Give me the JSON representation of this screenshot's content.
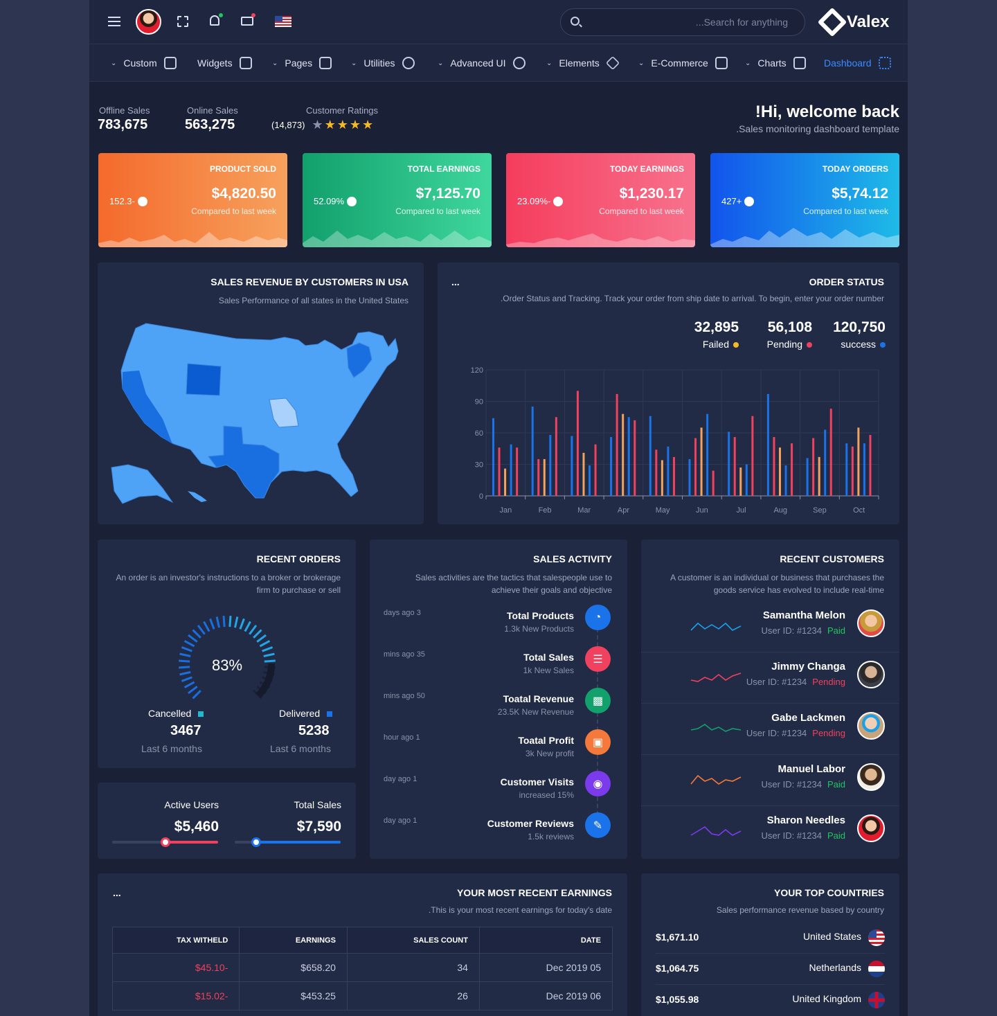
{
  "header": {
    "brand": "Valex",
    "search_placeholder": "...Search for anything",
    "icons": [
      "menu-icon",
      "fullscreen-icon",
      "bell-icon",
      "mail-icon",
      "us-flag-icon"
    ]
  },
  "nav": [
    {
      "label": "Custom",
      "icon": "lock-icon"
    },
    {
      "label": "Widgets",
      "icon": "basket-icon"
    },
    {
      "label": "Pages",
      "icon": "book-icon"
    },
    {
      "label": "Utilities",
      "icon": "aperture-icon"
    },
    {
      "label": "Advanced UI",
      "icon": "palette-icon"
    },
    {
      "label": "Elements",
      "icon": "layers-icon"
    },
    {
      "label": "E-Commerce",
      "icon": "basket-icon"
    },
    {
      "label": "Charts",
      "icon": "bar-chart-icon"
    },
    {
      "label": "Dashboard",
      "icon": "dashboard-icon",
      "active": true
    }
  ],
  "stats": {
    "offline_label": "Offline Sales",
    "offline_value": "783,675",
    "online_label": "Online Sales",
    "online_value": "563,275",
    "ratings_label": "Customer Ratings",
    "ratings_count": "(14,873)",
    "ratings_stars": 4
  },
  "welcome": {
    "title": "!Hi, welcome back",
    "subtitle": ".Sales monitoring dashboard template"
  },
  "kpis": [
    {
      "title": "PRODUCT SOLD",
      "value": "$4,820.50",
      "compare": "Compared to last week",
      "pct": "152.3-",
      "trend": "down",
      "colors": [
        "#f46a2c",
        "#f7a15d"
      ]
    },
    {
      "title": "TOTAL EARNINGS",
      "value": "$7,125.70",
      "compare": "Compared to last week",
      "pct": "52.09%",
      "trend": "up",
      "colors": [
        "#12a06c",
        "#3fd79d"
      ]
    },
    {
      "title": "TODAY EARNINGS",
      "value": "$1,230.17",
      "compare": "Compared to last week",
      "pct": "23.09%-",
      "trend": "down",
      "colors": [
        "#f53d5d",
        "#f7728d"
      ]
    },
    {
      "title": "TODAY ORDERS",
      "value": "$5,74.12",
      "compare": "Compared to last week",
      "pct": "427+",
      "trend": "up",
      "colors": [
        "#1254ec",
        "#1ebbe8"
      ]
    }
  ],
  "map_card": {
    "title": "SALES REVENUE BY CUSTOMERS IN USA",
    "subtitle": "Sales Performance of all states in the United States"
  },
  "order_status": {
    "menu": "...",
    "title": "ORDER STATUS",
    "subtitle": ".Order Status and Tracking. Track your order from ship date to arrival. To begin, enter your order number",
    "totals": [
      {
        "value": "32,895",
        "label": "Failed",
        "color": "#f5b829"
      },
      {
        "value": "56,108",
        "label": "Pending",
        "color": "#f0415f"
      },
      {
        "value": "120,750",
        "label": "success",
        "color": "#1a73e8"
      }
    ]
  },
  "chart_data": {
    "type": "bar",
    "categories": [
      "Jan",
      "Feb",
      "Mar",
      "Apr",
      "May",
      "Jun",
      "Jul",
      "Aug",
      "Sep",
      "Oct"
    ],
    "y_ticks": [
      "0",
      "30",
      "60",
      "90",
      "120"
    ],
    "ylim": [
      0,
      120
    ],
    "grid": true,
    "series": [
      {
        "color": "#1a73e8",
        "values": [
          74,
          85,
          57,
          56,
          76,
          35,
          61,
          97,
          36,
          50
        ]
      },
      {
        "color": "#f0415f",
        "values": [
          46,
          35,
          100,
          97,
          44,
          55,
          56,
          56,
          55,
          47
        ]
      },
      {
        "color": "#f5a25d",
        "values": [
          26,
          35,
          41,
          78,
          34,
          65,
          27,
          46,
          37,
          65
        ]
      },
      {
        "color": "#1a73e8",
        "values": [
          49,
          58,
          29,
          75,
          47,
          78,
          30,
          29,
          63,
          50
        ]
      },
      {
        "color": "#f0415f",
        "values": [
          46,
          75,
          49,
          72,
          37,
          24,
          76,
          50,
          83,
          58
        ]
      }
    ]
  },
  "recent_orders": {
    "title": "RECENT ORDERS",
    "subtitle": "An order is an investor's instructions to a broker or brokerage firm to purchase or sell",
    "percent": "83%",
    "progress": 0.83,
    "cancelled_label": "Cancelled",
    "cancelled_value": "3467",
    "cancelled_period": "Last 6 months",
    "delivered_label": "Delivered",
    "delivered_value": "5238",
    "delivered_period": "Last 6 months"
  },
  "users_sales": {
    "active_label": "Active Users",
    "active_value": "$5,460",
    "active_level": 0.5,
    "sales_label": "Total Sales",
    "sales_value": "$7,590",
    "sales_level": 0.2
  },
  "sales_activity": {
    "title": "SALES ACTIVITY",
    "subtitle": "Sales activities are the tactics that salespeople use to achieve their goals and objective",
    "items": [
      {
        "time": "days ago 3",
        "title": "Total Products",
        "sub": "1.3k New Products",
        "icon": "pie-chart-icon",
        "color": "#1a73e8"
      },
      {
        "time": "mins ago 35",
        "title": "Total Sales",
        "sub": "1k New Sales",
        "icon": "cart-icon",
        "color": "#f0415f"
      },
      {
        "time": "mins ago 50",
        "title": "Toatal Revenue",
        "sub": "23.5K New Revenue",
        "icon": "bar-chart-icon",
        "color": "#12a06c"
      },
      {
        "time": "hour ago 1",
        "title": "Toatal Profit",
        "sub": "3k New profit",
        "icon": "wallet-icon",
        "color": "#f5793a"
      },
      {
        "time": "day ago 1",
        "title": "Customer Visits",
        "sub": "increased 15%",
        "icon": "eye-icon",
        "color": "#7c3aed"
      },
      {
        "time": "day ago 1",
        "title": "Customer Reviews",
        "sub": "1.5k reviews",
        "icon": "edit-icon",
        "color": "#1a73e8"
      }
    ]
  },
  "recent_customers": {
    "title": "RECENT CUSTOMERS",
    "subtitle": "A customer is an individual or business that purchases the goods service has evolved to include real-time",
    "items": [
      {
        "name": "Samantha Melon",
        "id": "User ID: #1234",
        "status": "Paid",
        "status_color": "#22c55e",
        "spark_color": "#1a9fe8"
      },
      {
        "name": "Jimmy Changa",
        "id": "User ID: #1234",
        "status": "Pending",
        "status_color": "#f0415f",
        "spark_color": "#f0415f"
      },
      {
        "name": "Gabe Lackmen",
        "id": "User ID: #1234",
        "status": "Pending",
        "status_color": "#f0415f",
        "spark_color": "#12a06c"
      },
      {
        "name": "Manuel Labor",
        "id": "User ID: #1234",
        "status": "Paid",
        "status_color": "#22c55e",
        "spark_color": "#f5793a"
      },
      {
        "name": "Sharon Needles",
        "id": "User ID: #1234",
        "status": "Paid",
        "status_color": "#22c55e",
        "spark_color": "#7c3aed"
      }
    ]
  },
  "earnings": {
    "menu": "...",
    "title": "YOUR MOST RECENT EARNINGS",
    "subtitle": ".This is your most recent earnings for today's date",
    "columns": [
      "TAX WITHELD",
      "EARNINGS",
      "SALES COUNT",
      "DATE"
    ],
    "rows": [
      [
        "$45.10-",
        "$658.20",
        "34",
        "Dec 2019 05"
      ],
      [
        "$15.02-",
        "$453.25",
        "26",
        "Dec 2019 06"
      ]
    ]
  },
  "top_countries": {
    "title": "YOUR TOP COUNTRIES",
    "subtitle": "Sales performance revenue based by country",
    "items": [
      {
        "amount": "$1,671.10",
        "name": "United States",
        "flag": "us-flag-icon"
      },
      {
        "amount": "$1,064.75",
        "name": "Netherlands",
        "flag": "nl-flag-icon"
      },
      {
        "amount": "$1,055.98",
        "name": "United Kingdom",
        "flag": "uk-flag-icon"
      }
    ]
  }
}
